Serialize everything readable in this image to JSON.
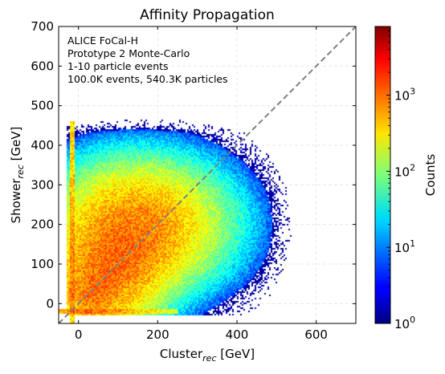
{
  "chart_data": {
    "type": "heatmap",
    "title": "Affinity Propagation",
    "xlabel": "Cluster",
    "xlabel_sub": "rec",
    "xlabel_unit": " [GeV]",
    "ylabel": "Shower",
    "ylabel_sub": "rec",
    "ylabel_unit": " [GeV]",
    "xlim": [
      -50,
      700
    ],
    "ylim": [
      -50,
      700
    ],
    "xticks": [
      0,
      200,
      400,
      600
    ],
    "yticks": [
      0,
      100,
      200,
      300,
      400,
      500,
      600,
      700
    ],
    "annotation": [
      "ALICE FoCal-H",
      "Prototype 2 Monte-Carlo",
      "1-10 particle events",
      "100.0K events, 540.3K particles"
    ],
    "colorbar": {
      "label": "Counts",
      "scale": "log",
      "range": [
        1,
        8000
      ],
      "ticks": [
        {
          "base": "10",
          "exp": "0",
          "value": 1
        },
        {
          "base": "10",
          "exp": "1",
          "value": 10
        },
        {
          "base": "10",
          "exp": "2",
          "value": 100
        },
        {
          "base": "10",
          "exp": "3",
          "value": 1000
        }
      ]
    },
    "diagonal": {
      "from": [
        -50,
        -50
      ],
      "to": [
        700,
        700
      ],
      "color": "#808080",
      "style": "dashed"
    },
    "grid": true,
    "colormap": "jet"
  }
}
